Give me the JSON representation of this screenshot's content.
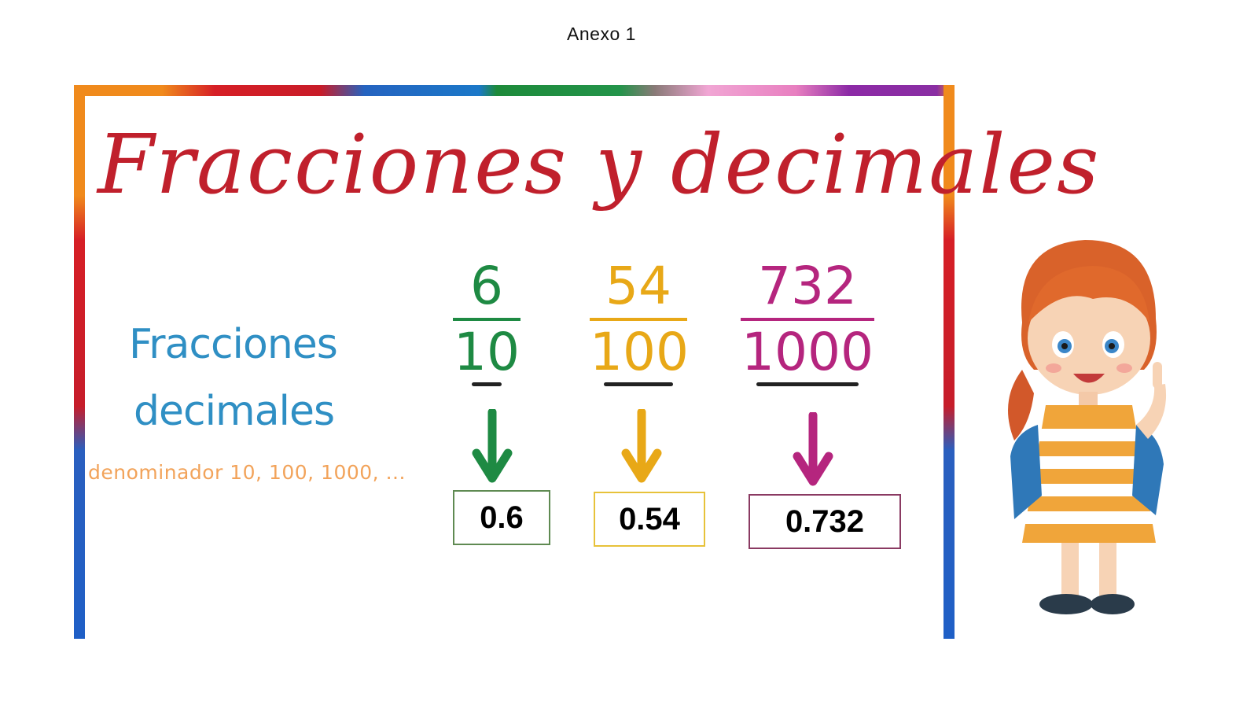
{
  "page": {
    "heading": "Anexo 1"
  },
  "poster": {
    "title": "Fracciones y decimales",
    "label_line1": "Fracciones",
    "label_line2": "decimales",
    "label_note": "denominador 10, 100, 1000, ...",
    "fractions": [
      {
        "numerator": "6",
        "denominator": "10",
        "decimal": "0.6",
        "color": "#1e8a43"
      },
      {
        "numerator": "54",
        "denominator": "100",
        "decimal": "0.54",
        "color": "#e8a817"
      },
      {
        "numerator": "732",
        "denominator": "1000",
        "decimal": "0.732",
        "color": "#b5257e"
      }
    ]
  },
  "colors": {
    "title": "#c0202c",
    "label": "#2f8fc4",
    "note": "#f2a35a"
  },
  "icons": [
    "down-arrow-icon",
    "girl-illustration"
  ]
}
